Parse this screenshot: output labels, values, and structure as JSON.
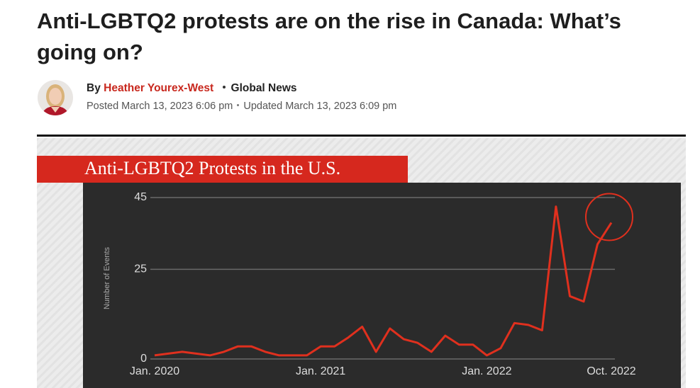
{
  "article": {
    "title": "Anti-LGBTQ2 protests are on the rise in Canada: What’s going on?",
    "byline_prefix": "By",
    "author": "Heather Yourex-West",
    "outlet": "Global News",
    "posted": "Posted March 13, 2023 6:06 pm",
    "updated": "Updated March 13, 2023 6:09 pm"
  },
  "chart_data": {
    "type": "line",
    "title": "Anti-LGBTQ2 Protests in the U.S.",
    "y_label": "Number of Events",
    "categories": [
      "Jan. 2020",
      null,
      null,
      null,
      null,
      null,
      null,
      null,
      null,
      null,
      null,
      null,
      "Jan. 2021",
      null,
      null,
      null,
      null,
      null,
      null,
      null,
      null,
      null,
      null,
      null,
      "Jan. 2022",
      null,
      null,
      null,
      null,
      null,
      null,
      null,
      null,
      "Oct. 2022"
    ],
    "values": [
      1,
      1.5,
      2,
      1.5,
      1,
      2,
      3.5,
      3.5,
      2,
      1,
      1,
      1,
      3.5,
      3.5,
      6,
      9,
      2,
      8.5,
      5.5,
      4.5,
      2,
      6.5,
      4,
      4,
      1,
      3,
      10,
      9.5,
      8,
      42.5,
      17.5,
      16,
      32,
      38
    ],
    "color": "#e0301e",
    "ylim": [
      0,
      45
    ],
    "yticks": [
      0,
      25,
      45
    ],
    "grid": true
  }
}
